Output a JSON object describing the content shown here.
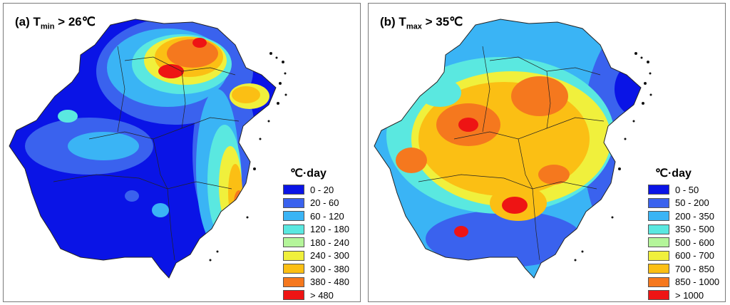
{
  "panels": [
    {
      "title": {
        "label": "(a) T",
        "sub": "min",
        "rest": " > 26℃"
      },
      "legend": {
        "unit": "℃·day",
        "items": [
          {
            "label": "0 - 20",
            "color": "#0a14e6"
          },
          {
            "label": "20 - 60",
            "color": "#3a62ee"
          },
          {
            "label": "60 - 120",
            "color": "#3ab4f5"
          },
          {
            "label": "120 - 180",
            "color": "#5ae8e0"
          },
          {
            "label": "180 - 240",
            "color": "#b4f59a"
          },
          {
            "label": "240 - 300",
            "color": "#f0f03c"
          },
          {
            "label": "300 - 380",
            "color": "#fbbf14"
          },
          {
            "label": "380 - 480",
            "color": "#f5781e"
          },
          {
            "label": "> 480",
            "color": "#ee1414"
          }
        ]
      }
    },
    {
      "title": {
        "label": "(b) T",
        "sub": "max",
        "rest": " > 35℃"
      },
      "legend": {
        "unit": "℃·day",
        "items": [
          {
            "label": "0 - 50",
            "color": "#0a14e6"
          },
          {
            "label": "50 - 200",
            "color": "#3a62ee"
          },
          {
            "label": "200 - 350",
            "color": "#3ab4f5"
          },
          {
            "label": "350 - 500",
            "color": "#5ae8e0"
          },
          {
            "label": "500 - 600",
            "color": "#b4f59a"
          },
          {
            "label": "600 - 700",
            "color": "#f0f03c"
          },
          {
            "label": "700 - 850",
            "color": "#fbbf14"
          },
          {
            "label": "850 - 1000",
            "color": "#f5781e"
          },
          {
            "label": "> 1000",
            "color": "#ee1414"
          }
        ]
      }
    }
  ]
}
